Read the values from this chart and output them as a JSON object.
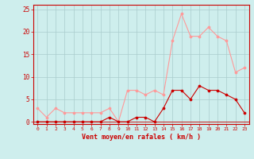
{
  "x": [
    0,
    1,
    2,
    3,
    4,
    5,
    6,
    7,
    8,
    9,
    10,
    11,
    12,
    13,
    14,
    15,
    16,
    17,
    18,
    19,
    20,
    21,
    22,
    23
  ],
  "y_light": [
    3,
    1,
    3,
    2,
    2,
    2,
    2,
    2,
    3,
    0,
    7,
    7,
    6,
    7,
    6,
    18,
    24,
    19,
    19,
    21,
    19,
    18,
    11,
    12
  ],
  "y_dark": [
    0,
    0,
    0,
    0,
    0,
    0,
    0,
    0,
    1,
    0,
    0,
    1,
    1,
    0,
    3,
    7,
    7,
    5,
    8,
    7,
    7,
    6,
    5,
    2
  ],
  "bg_color": "#ceeeed",
  "line_light_color": "#ff9999",
  "line_dark_color": "#cc0000",
  "grid_color": "#aacccc",
  "tick_color": "#cc0000",
  "xlabel": "Vent moyen/en rafales ( km/h )",
  "ylabel_ticks": [
    0,
    5,
    10,
    15,
    20,
    25
  ],
  "xlim": [
    -0.5,
    23.5
  ],
  "ylim": [
    -0.5,
    26
  ]
}
